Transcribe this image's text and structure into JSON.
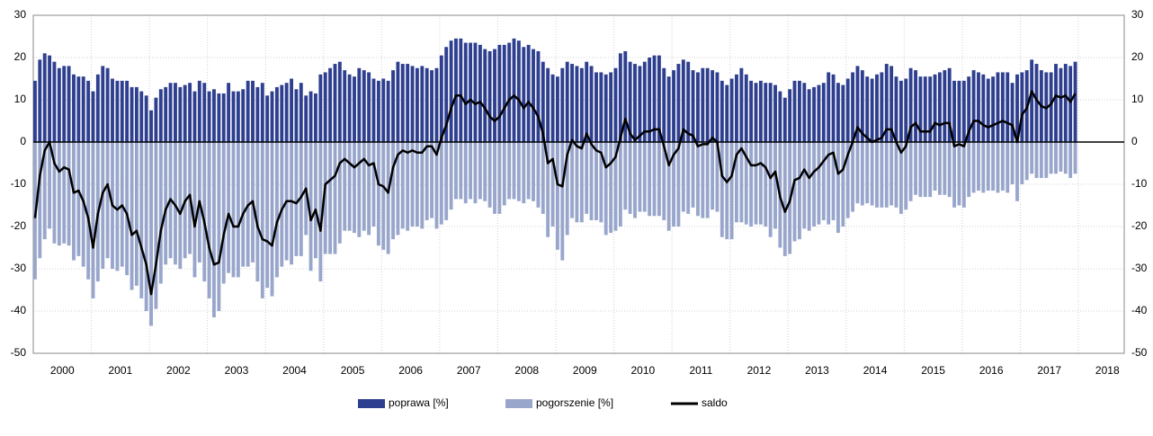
{
  "chart_data": {
    "type": "bar_line",
    "xlim": [
      2000,
      2018.79
    ],
    "xticks": [
      2000,
      2001,
      2002,
      2003,
      2004,
      2005,
      2006,
      2007,
      2008,
      2009,
      2010,
      2011,
      2012,
      2013,
      2014,
      2015,
      2016,
      2017,
      2018
    ],
    "ylim": [
      -50,
      30
    ],
    "yticks": [
      -50,
      -40,
      -30,
      -20,
      -10,
      0,
      10,
      20,
      30
    ],
    "y2lim": [
      -50,
      30
    ],
    "y2ticks": [
      -50,
      -40,
      -30,
      -20,
      -10,
      0,
      10,
      20,
      30
    ],
    "grid": true,
    "x": [
      2000,
      2000.083,
      2000.167,
      2000.25,
      2000.333,
      2000.417,
      2000.5,
      2000.583,
      2000.667,
      2000.75,
      2000.833,
      2000.917,
      2001,
      2001.083,
      2001.167,
      2001.25,
      2001.333,
      2001.417,
      2001.5,
      2001.583,
      2001.667,
      2001.75,
      2001.833,
      2001.917,
      2002,
      2002.083,
      2002.167,
      2002.25,
      2002.333,
      2002.417,
      2002.5,
      2002.583,
      2002.667,
      2002.75,
      2002.833,
      2002.917,
      2003,
      2003.083,
      2003.167,
      2003.25,
      2003.333,
      2003.417,
      2003.5,
      2003.583,
      2003.667,
      2003.75,
      2003.833,
      2003.917,
      2004,
      2004.083,
      2004.167,
      2004.25,
      2004.333,
      2004.417,
      2004.5,
      2004.583,
      2004.667,
      2004.75,
      2004.833,
      2004.917,
      2005,
      2005.083,
      2005.167,
      2005.25,
      2005.333,
      2005.417,
      2005.5,
      2005.583,
      2005.667,
      2005.75,
      2005.833,
      2005.917,
      2006,
      2006.083,
      2006.167,
      2006.25,
      2006.333,
      2006.417,
      2006.5,
      2006.583,
      2006.667,
      2006.75,
      2006.833,
      2006.917,
      2007,
      2007.083,
      2007.167,
      2007.25,
      2007.333,
      2007.417,
      2007.5,
      2007.583,
      2007.667,
      2007.75,
      2007.833,
      2007.917,
      2008,
      2008.083,
      2008.167,
      2008.25,
      2008.333,
      2008.417,
      2008.5,
      2008.583,
      2008.667,
      2008.75,
      2008.833,
      2008.917,
      2009,
      2009.083,
      2009.167,
      2009.25,
      2009.333,
      2009.417,
      2009.5,
      2009.583,
      2009.667,
      2009.75,
      2009.833,
      2009.917,
      2010,
      2010.083,
      2010.167,
      2010.25,
      2010.333,
      2010.417,
      2010.5,
      2010.583,
      2010.667,
      2010.75,
      2010.833,
      2010.917,
      2011,
      2011.083,
      2011.167,
      2011.25,
      2011.333,
      2011.417,
      2011.5,
      2011.583,
      2011.667,
      2011.75,
      2011.833,
      2011.917,
      2012,
      2012.083,
      2012.167,
      2012.25,
      2012.333,
      2012.417,
      2012.5,
      2012.583,
      2012.667,
      2012.75,
      2012.833,
      2012.917,
      2013,
      2013.083,
      2013.167,
      2013.25,
      2013.333,
      2013.417,
      2013.5,
      2013.583,
      2013.667,
      2013.75,
      2013.833,
      2013.917,
      2014,
      2014.083,
      2014.167,
      2014.25,
      2014.333,
      2014.417,
      2014.5,
      2014.583,
      2014.667,
      2014.75,
      2014.833,
      2014.917,
      2015,
      2015.083,
      2015.167,
      2015.25,
      2015.333,
      2015.417,
      2015.5,
      2015.583,
      2015.667,
      2015.75,
      2015.833,
      2015.917,
      2016,
      2016.083,
      2016.167,
      2016.25,
      2016.333,
      2016.417,
      2016.5,
      2016.583,
      2016.667,
      2016.75,
      2016.833,
      2016.917,
      2017,
      2017.083,
      2017.167,
      2017.25,
      2017.333,
      2017.417,
      2017.5,
      2017.583,
      2017.667,
      2017.75,
      2017.833,
      2017.917
    ],
    "series": [
      {
        "name": "poprawa [%]",
        "type": "bar",
        "color": "#2e3f8f",
        "values": [
          14.5,
          19.5,
          21,
          20.5,
          19,
          17.5,
          18,
          18,
          16,
          15.5,
          15.5,
          14.5,
          12,
          16,
          18,
          17.5,
          15,
          14.5,
          14.5,
          14.5,
          13,
          13,
          12,
          11,
          7.5,
          10.5,
          12.5,
          13,
          14,
          14,
          13,
          13.5,
          14,
          12,
          14.5,
          14,
          12,
          12.5,
          11.5,
          11.5,
          14,
          12,
          12,
          12.5,
          14.5,
          14.5,
          13,
          14,
          11,
          12,
          13,
          13.5,
          14,
          15,
          12.5,
          14,
          11,
          12,
          11.5,
          16,
          16.5,
          17.5,
          18.5,
          19,
          17,
          16,
          15.5,
          17.5,
          17,
          16.5,
          15,
          14.5,
          15,
          14.5,
          17,
          19,
          18.5,
          18.5,
          18,
          17.5,
          18,
          17.5,
          17,
          17.5,
          20.5,
          22.5,
          24,
          24.5,
          24.5,
          23.5,
          23.5,
          23.5,
          23,
          22,
          21.5,
          22,
          23,
          23,
          23.5,
          24.5,
          24,
          22.5,
          23,
          22,
          21.5,
          19,
          17.5,
          16,
          15.5,
          17.5,
          19,
          18.5,
          18,
          17.5,
          19,
          18,
          16.5,
          16.5,
          16,
          16.5,
          17.5,
          21,
          21.5,
          19,
          18.5,
          18,
          19,
          20,
          20.5,
          20.5,
          17.5,
          15.5,
          17,
          18.5,
          19.5,
          19,
          17,
          16.5,
          17.5,
          17.5,
          17,
          16.5,
          14.5,
          13.5,
          15,
          16,
          17.5,
          16,
          14.5,
          14,
          14.5,
          14,
          14,
          13.5,
          12,
          10.5,
          12.5,
          14.5,
          14.5,
          14,
          12.5,
          13,
          13.5,
          14,
          16.5,
          16,
          14,
          13.5,
          15,
          16.5,
          18,
          17,
          15.5,
          15,
          16,
          16.5,
          18.5,
          18,
          15.5,
          14.5,
          15,
          17.5,
          17,
          15.5,
          15.5,
          15.5,
          16,
          16.5,
          17,
          17.5,
          14.5,
          14.5,
          14.5,
          15.5,
          17,
          16.5,
          16,
          15,
          15.5,
          16.5,
          16.5,
          16.5,
          14,
          16,
          16.5,
          17,
          19.5,
          18.5,
          17,
          16.5,
          16.5,
          18.5,
          17.5,
          18.5,
          18,
          19
        ]
      },
      {
        "name": "pogorszenie [%]",
        "type": "bar",
        "color": "#99a6cc",
        "values": [
          -32.5,
          -27.5,
          -23,
          -20.5,
          -24,
          -24.5,
          -24,
          -24.5,
          -28,
          -27,
          -29.5,
          -32.5,
          -37,
          -33,
          -30,
          -27.5,
          -30,
          -30.5,
          -29.5,
          -31.5,
          -35,
          -34,
          -37,
          -40,
          -43.5,
          -39.5,
          -33.5,
          -29,
          -27.5,
          -29,
          -30,
          -27.5,
          -26.5,
          -32,
          -28.5,
          -33,
          -37,
          -41.5,
          -40,
          -33.5,
          -31,
          -32,
          -32,
          -29.5,
          -29.5,
          -28.5,
          -33,
          -37,
          -34.5,
          -36.5,
          -32,
          -29.5,
          -28,
          -29,
          -27,
          -27,
          -22,
          -30.5,
          -27.5,
          -33,
          -26.5,
          -26.5,
          -26.5,
          -24,
          -21,
          -21,
          -21.5,
          -22.5,
          -21,
          -22,
          -20,
          -24.5,
          -25.5,
          -26.5,
          -23,
          -22,
          -20.5,
          -21,
          -20,
          -20,
          -20.5,
          -18.5,
          -18,
          -20.5,
          -19.5,
          -18.5,
          -16,
          -13.5,
          -13.5,
          -14.5,
          -13.5,
          -14.5,
          -13.5,
          -14,
          -15.5,
          -17,
          -17,
          -15,
          -13.5,
          -13.5,
          -14,
          -14.5,
          -13.5,
          -14,
          -15.5,
          -17,
          -22.5,
          -20,
          -25.5,
          -28,
          -22,
          -18,
          -19,
          -19,
          -17,
          -18.5,
          -18.5,
          -19,
          -22,
          -21.5,
          -21,
          -20,
          -16,
          -17,
          -18,
          -16.5,
          -16.5,
          -17.5,
          -17.5,
          -17.5,
          -18.5,
          -21,
          -20,
          -20,
          -16.5,
          -17,
          -15.5,
          -17.5,
          -18,
          -18,
          -16,
          -16.5,
          -22.5,
          -23,
          -23,
          -19,
          -19,
          -19.5,
          -20,
          -19.5,
          -19.5,
          -20,
          -22.5,
          -20.5,
          -25,
          -27,
          -26.5,
          -23.5,
          -23,
          -20.5,
          -21,
          -20,
          -19.5,
          -18.5,
          -19.5,
          -18.5,
          -21.5,
          -20,
          -18,
          -16.5,
          -14.5,
          -15,
          -14.5,
          -15,
          -15.5,
          -15.5,
          -15.5,
          -15,
          -15.5,
          -17,
          -16,
          -14,
          -12.5,
          -13,
          -13,
          -13,
          -11.5,
          -12.5,
          -12.5,
          -13,
          -15.5,
          -15,
          -15.5,
          -13,
          -12,
          -11.5,
          -12,
          -11.5,
          -11.5,
          -12,
          -11.5,
          -12,
          -10,
          -14,
          -10,
          -9,
          -7.5,
          -8.5,
          -8.5,
          -8.5,
          -7.5,
          -7.5,
          -7,
          -7.5,
          -8.5,
          -7.5
        ]
      },
      {
        "name": "saldo",
        "type": "line",
        "color": "#000000",
        "values": [
          -18,
          -8,
          -2,
          0,
          -5,
          -7,
          -6,
          -6.5,
          -12,
          -11.5,
          -14,
          -18,
          -25,
          -17,
          -12,
          -10,
          -15,
          -16,
          -15,
          -17,
          -22,
          -21,
          -25,
          -29,
          -36,
          -29,
          -21,
          -16,
          -13.5,
          -15,
          -17,
          -14,
          -12.5,
          -20,
          -14,
          -19,
          -25,
          -29,
          -28.5,
          -22,
          -17,
          -20,
          -20,
          -17,
          -15,
          -14,
          -20,
          -23,
          -23.5,
          -24.5,
          -19,
          -16,
          -14,
          -14,
          -14.5,
          -13,
          -11,
          -18.5,
          -16,
          -21,
          -10,
          -9,
          -8,
          -5,
          -4,
          -5,
          -6,
          -5,
          -4,
          -5.5,
          -5,
          -10,
          -10.5,
          -12,
          -6,
          -3,
          -2,
          -2.5,
          -2,
          -2.5,
          -2.5,
          -1,
          -1,
          -3,
          1,
          4,
          8,
          11,
          11,
          9,
          10,
          9,
          9.5,
          8,
          6,
          5,
          6,
          8,
          10,
          11,
          10,
          8,
          9.5,
          8,
          6,
          2,
          -5,
          -4,
          -10,
          -10.5,
          -3,
          0.5,
          -1,
          -1.5,
          2,
          -0.5,
          -2,
          -2.5,
          -6,
          -5,
          -3.5,
          1,
          5.5,
          2,
          0.5,
          1.5,
          2.5,
          2.5,
          3,
          3,
          -1,
          -5.5,
          -3,
          -1.5,
          3,
          2,
          1.5,
          -1,
          -0.5,
          -0.5,
          1,
          0,
          -8,
          -9.5,
          -8,
          -3,
          -1.5,
          -3.5,
          -5.5,
          -5.5,
          -5,
          -6,
          -8.5,
          -7,
          -13,
          -16.5,
          -14,
          -9,
          -8.5,
          -6.5,
          -8.5,
          -7,
          -6,
          -4.5,
          -3,
          -2.5,
          -7.5,
          -6.5,
          -3,
          0,
          3.5,
          2,
          1,
          0,
          0.5,
          1,
          3,
          3,
          0,
          -2.5,
          -1,
          3.5,
          4.5,
          2.5,
          2.5,
          2.5,
          4.5,
          4,
          4.5,
          4.5,
          -1,
          -0.5,
          -1,
          2.5,
          5,
          5,
          4,
          3.5,
          4,
          4.5,
          5,
          4.5,
          4,
          0,
          6.5,
          8,
          12,
          10,
          8.5,
          8,
          9,
          11,
          10.5,
          11,
          9.5,
          11.5
        ]
      }
    ]
  }
}
